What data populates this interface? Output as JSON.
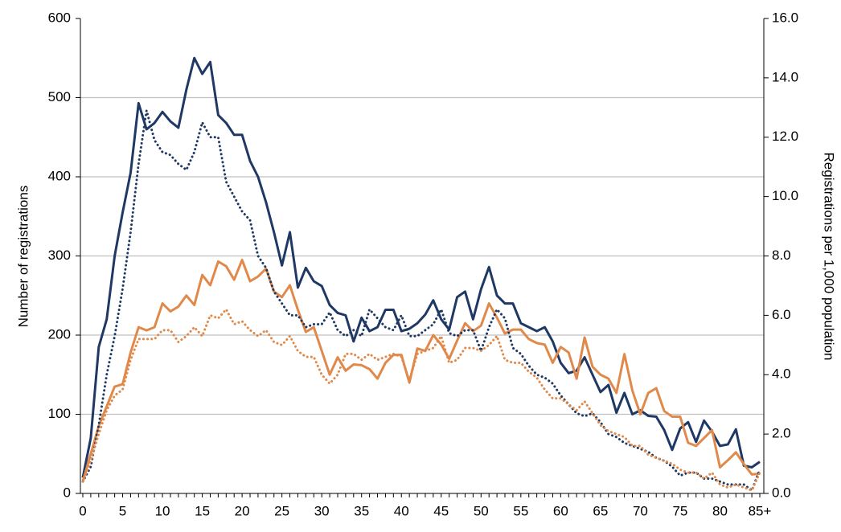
{
  "chart_data": {
    "type": "line",
    "y_label": "Number of registrations",
    "y2_label": "Registrations per 1,000 population",
    "categories": [
      "0",
      null,
      null,
      null,
      null,
      "5",
      null,
      null,
      null,
      null,
      "10",
      null,
      null,
      null,
      null,
      "15",
      null,
      null,
      null,
      null,
      "20",
      null,
      null,
      null,
      null,
      "25",
      null,
      null,
      null,
      null,
      "30",
      null,
      null,
      null,
      null,
      "35",
      null,
      null,
      null,
      null,
      "40",
      null,
      null,
      null,
      null,
      "45",
      null,
      null,
      null,
      null,
      "50",
      null,
      null,
      null,
      null,
      "55",
      null,
      null,
      null,
      null,
      "60",
      null,
      null,
      null,
      null,
      "65",
      null,
      null,
      null,
      null,
      "70",
      null,
      null,
      null,
      null,
      "75",
      null,
      null,
      null,
      null,
      "80",
      null,
      null,
      null,
      null,
      "85+"
    ],
    "ylim": [
      0,
      600
    ],
    "yticks": [
      0,
      100,
      200,
      300,
      400,
      500,
      600
    ],
    "y2lim": [
      0,
      16
    ],
    "y2ticks": [
      {
        "value": 0,
        "label": "0.0"
      },
      {
        "value": 2,
        "label": "2.0"
      },
      {
        "value": 4,
        "label": "4.0"
      },
      {
        "value": 6,
        "label": "6.0"
      },
      {
        "value": 8,
        "label": "8.0"
      },
      {
        "value": 10,
        "label": "10.0"
      },
      {
        "value": 12,
        "label": "12.0"
      },
      {
        "value": 14,
        "label": "14.0"
      },
      {
        "value": 16,
        "label": "16.0"
      }
    ],
    "grid": true,
    "series": [
      {
        "color": "#1f3864",
        "dash": "solid",
        "values": [
          20,
          70,
          185,
          220,
          300,
          355,
          405,
          493,
          460,
          468,
          482,
          470,
          462,
          510,
          550,
          530,
          545,
          478,
          468,
          453,
          453,
          420,
          400,
          368,
          330,
          288,
          330,
          260,
          285,
          268,
          262,
          238,
          228,
          225,
          192,
          222,
          205,
          210,
          232,
          232,
          205,
          208,
          215,
          226,
          244,
          220,
          207,
          248,
          255,
          220,
          258,
          286,
          250,
          240,
          240,
          215,
          210,
          205,
          210,
          192,
          165,
          152,
          155,
          172,
          150,
          128,
          137,
          102,
          127,
          100,
          105,
          98,
          97,
          80,
          55,
          82,
          90,
          65,
          92,
          78,
          60,
          62,
          81,
          35,
          33,
          40
        ]
      },
      {
        "color": "#e0894a",
        "dash": "solid",
        "values": [
          15,
          50,
          85,
          110,
          135,
          138,
          178,
          210,
          206,
          210,
          240,
          230,
          236,
          250,
          238,
          276,
          263,
          293,
          287,
          270,
          295,
          268,
          274,
          284,
          255,
          248,
          263,
          232,
          204,
          210,
          180,
          150,
          172,
          155,
          163,
          162,
          157,
          145,
          165,
          175,
          175,
          140,
          183,
          180,
          200,
          188,
          170,
          193,
          215,
          205,
          212,
          240,
          222,
          202,
          207,
          207,
          195,
          190,
          188,
          165,
          185,
          178,
          145,
          197,
          160,
          150,
          145,
          127,
          176,
          130,
          100,
          127,
          133,
          104,
          97,
          97,
          64,
          60,
          70,
          80,
          33,
          42,
          52,
          37,
          24,
          25
        ]
      },
      {
        "color": "#1f3864",
        "dash": "dotted",
        "axis": "y2",
        "values": [
          0.4,
          0.9,
          2.3,
          4.0,
          5.3,
          6.9,
          8.8,
          11.1,
          12.9,
          11.9,
          11.5,
          11.4,
          11.1,
          10.9,
          11.5,
          12.5,
          12.0,
          12.0,
          10.5,
          10.0,
          9.5,
          9.2,
          8.0,
          7.6,
          6.8,
          6.4,
          6.0,
          6.0,
          5.6,
          5.7,
          5.7,
          6.1,
          5.5,
          5.3,
          5.5,
          5.3,
          6.2,
          5.9,
          5.6,
          5.5,
          6.0,
          5.3,
          5.3,
          5.5,
          5.7,
          6.2,
          5.4,
          5.3,
          5.5,
          5.5,
          4.8,
          5.6,
          6.2,
          5.9,
          4.9,
          4.7,
          4.3,
          4.0,
          3.9,
          3.7,
          3.3,
          3.0,
          2.7,
          2.6,
          2.7,
          2.4,
          2.0,
          1.9,
          1.7,
          1.6,
          1.5,
          1.4,
          1.2,
          1.1,
          0.9,
          0.6,
          0.7,
          0.7,
          0.5,
          0.5,
          0.4,
          0.3,
          0.3,
          0.3,
          0.1,
          0.8
        ]
      },
      {
        "color": "#e0894a",
        "dash": "dotted",
        "axis": "y2",
        "values": [
          0.4,
          1.1,
          2.0,
          2.8,
          3.3,
          3.5,
          4.5,
          5.2,
          5.2,
          5.2,
          5.5,
          5.5,
          5.1,
          5.3,
          5.6,
          5.3,
          6.0,
          5.9,
          6.2,
          5.7,
          5.8,
          5.5,
          5.3,
          5.5,
          5.1,
          5.0,
          5.3,
          4.8,
          4.6,
          4.6,
          4.0,
          3.7,
          4.0,
          4.7,
          4.7,
          4.5,
          4.7,
          4.5,
          4.6,
          4.7,
          4.6,
          3.8,
          4.7,
          4.8,
          4.9,
          5.3,
          4.4,
          4.5,
          4.9,
          4.9,
          4.8,
          5.0,
          5.3,
          4.5,
          4.4,
          4.4,
          4.1,
          3.9,
          3.5,
          3.2,
          3.2,
          3.0,
          2.8,
          3.1,
          2.7,
          2.3,
          2.1,
          2.0,
          1.9,
          1.6,
          1.6,
          1.3,
          1.2,
          1.1,
          1.0,
          0.8,
          0.7,
          0.7,
          0.5,
          0.7,
          0.3,
          0.2,
          0.3,
          0.2,
          0.1,
          0.7
        ]
      }
    ]
  }
}
